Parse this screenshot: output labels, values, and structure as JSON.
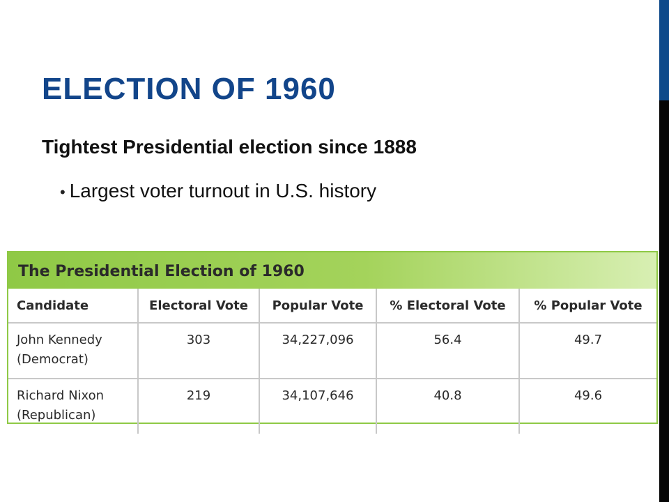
{
  "slide": {
    "title": "ELECTION OF 1960",
    "subtitle": "Tightest Presidential election since 1888",
    "bullet": "Largest voter turnout in U.S. history"
  },
  "table": {
    "caption": "The Presidential Election of 1960",
    "headers": [
      "Candidate",
      "Electoral Vote",
      "Popular Vote",
      "% Electoral Vote",
      "% Popular Vote"
    ],
    "rows": [
      {
        "name": "John Kennedy",
        "party": "(Democrat)",
        "electoral_vote": "303",
        "popular_vote": "34,227,096",
        "pct_electoral": "56.4",
        "pct_popular": "49.7"
      },
      {
        "name": "Richard Nixon",
        "party": "(Republican)",
        "electoral_vote": "219",
        "popular_vote": "34,107,646",
        "pct_electoral": "40.8",
        "pct_popular": "49.6"
      }
    ]
  },
  "colors": {
    "title": "#12458a",
    "accent_bar": "#0e4a8a",
    "table_header": "#8fc946"
  }
}
